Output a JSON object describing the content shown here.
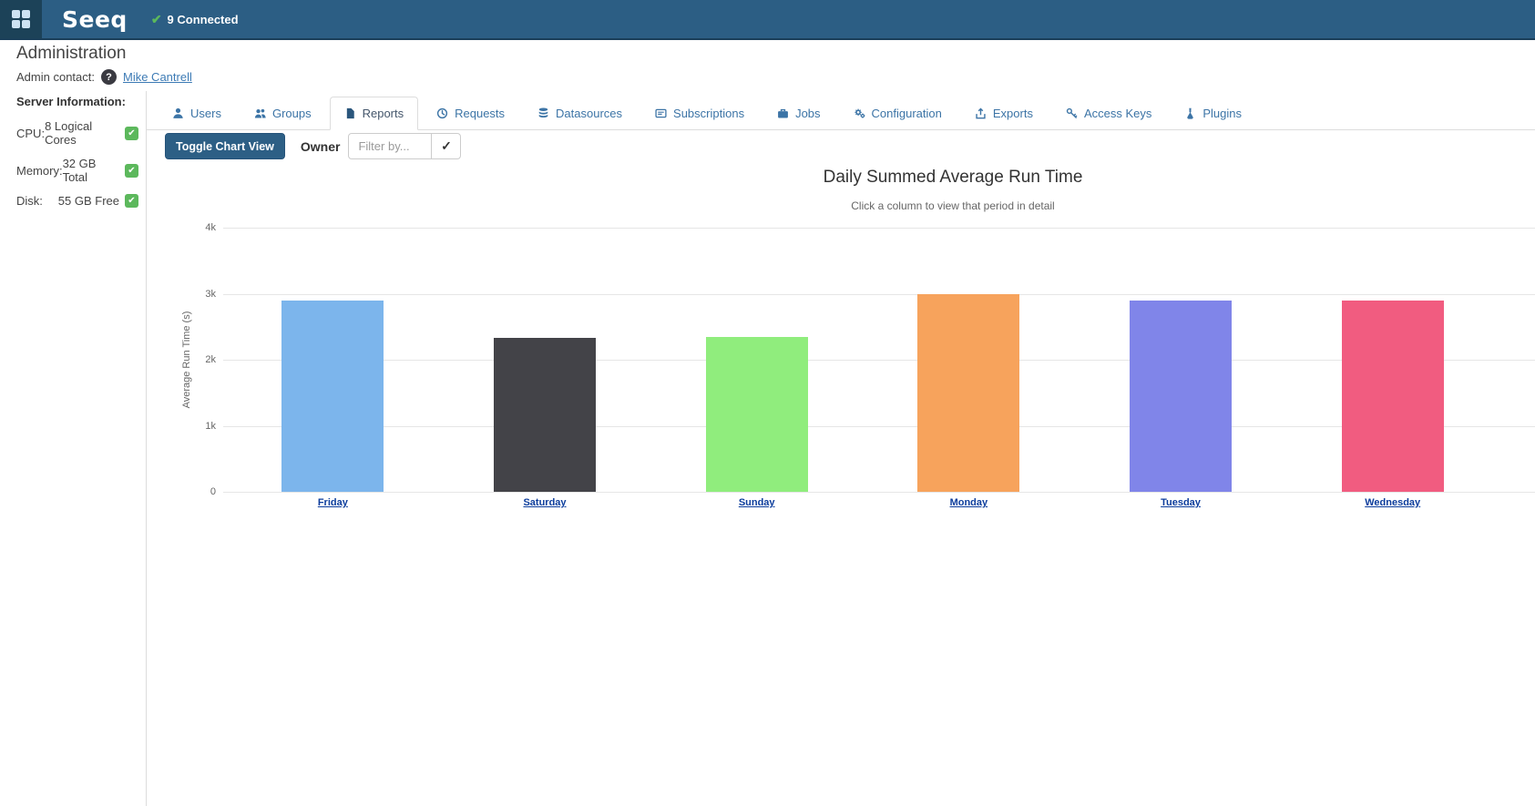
{
  "navbar": {
    "logo": "Seeq",
    "home_icon": "grid-icon",
    "connected_check_glyph": "✔",
    "connected_label": "9 Connected"
  },
  "page": {
    "title": "Administration",
    "admin_contact_label": "Admin contact:",
    "help_icon": "question-circle-icon",
    "help_glyph": "?",
    "admin_contact_name": "Mike Cantrell"
  },
  "server_info": {
    "heading": "Server Information:",
    "status_icon": "check-badge-icon",
    "check_glyph": "✔",
    "rows": [
      {
        "label": "CPU:",
        "value": "8 Logical Cores"
      },
      {
        "label": "Memory:",
        "value": "32 GB Total"
      },
      {
        "label": "Disk:",
        "value": "55 GB Free"
      }
    ]
  },
  "tabs": [
    {
      "label": "Users",
      "icon": "user-icon",
      "active": false
    },
    {
      "label": "Groups",
      "icon": "users-icon",
      "active": false
    },
    {
      "label": "Reports",
      "icon": "file-icon",
      "active": true
    },
    {
      "label": "Requests",
      "icon": "history-icon",
      "active": false
    },
    {
      "label": "Datasources",
      "icon": "database-icon",
      "active": false
    },
    {
      "label": "Subscriptions",
      "icon": "subscriptions-icon",
      "active": false
    },
    {
      "label": "Jobs",
      "icon": "briefcase-icon",
      "active": false
    },
    {
      "label": "Configuration",
      "icon": "cogs-icon",
      "active": false
    },
    {
      "label": "Exports",
      "icon": "export-icon",
      "active": false
    },
    {
      "label": "Access Keys",
      "icon": "key-icon",
      "active": false
    },
    {
      "label": "Plugins",
      "icon": "flask-icon",
      "active": false
    }
  ],
  "toolbar": {
    "toggle_button": "Toggle Chart View",
    "owner_label": "Owner",
    "filter_placeholder": "Filter by...",
    "filter_value": "",
    "apply_icon": "check-icon",
    "apply_glyph": "✓"
  },
  "chart_data": {
    "type": "bar",
    "title": "Daily Summed Average Run Time",
    "subtitle": "Click a column to view that period in detail",
    "xlabel": "",
    "ylabel": "Average Run Time (s)",
    "categories": [
      "Friday",
      "Saturday",
      "Sunday",
      "Monday",
      "Tuesday",
      "Wednesday"
    ],
    "values": [
      2890,
      2330,
      2340,
      2990,
      2890,
      2890
    ],
    "colors": [
      "#7cb5ec",
      "#434348",
      "#90ed7d",
      "#f7a35c",
      "#8085e9",
      "#f15c80"
    ],
    "ylim": [
      0,
      4000
    ],
    "yticks": [
      {
        "value": 0,
        "label": "0"
      },
      {
        "value": 1000,
        "label": "1k"
      },
      {
        "value": 2000,
        "label": "2k"
      },
      {
        "value": 3000,
        "label": "3k"
      },
      {
        "value": 4000,
        "label": "4k"
      }
    ],
    "grid": true,
    "legend": "none",
    "category_links": true
  }
}
